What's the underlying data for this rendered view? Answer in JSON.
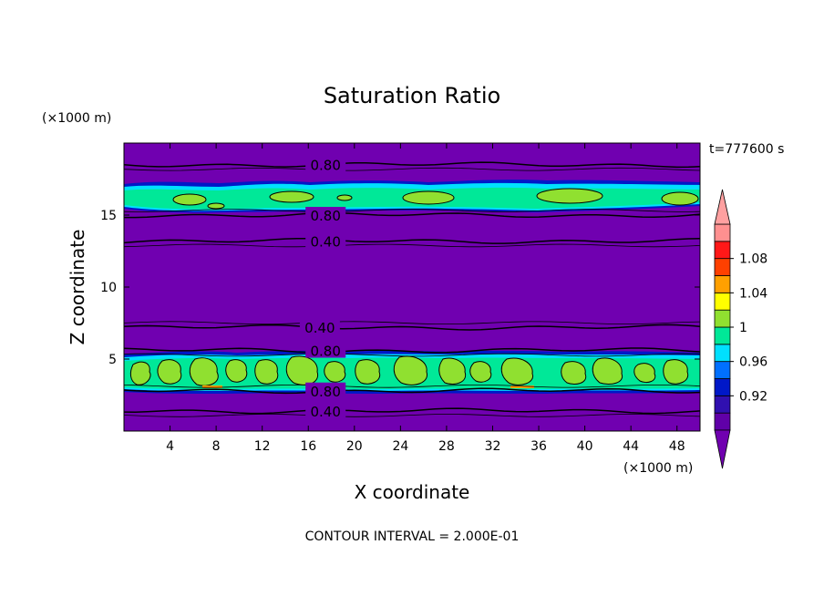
{
  "chart_data": {
    "type": "heatmap",
    "title": "Saturation Ratio",
    "xlabel": "X coordinate",
    "ylabel": "Z coordinate",
    "x_unit": "(×1000 m)",
    "y_unit": "(×1000 m)",
    "time_label": "t=777600 s",
    "footer": "CONTOUR INTERVAL = 2.000E-01",
    "xlim": [
      0,
      50
    ],
    "ylim": [
      0,
      20
    ],
    "xticks": [
      4,
      8,
      12,
      16,
      20,
      24,
      28,
      32,
      36,
      40,
      44,
      48
    ],
    "yticks": [
      5,
      10,
      15
    ],
    "colorbar": {
      "labels": [
        "0.92",
        "0.96",
        "1",
        "1.04",
        "1.08"
      ],
      "levels": [
        0.9,
        0.92,
        0.94,
        0.96,
        0.98,
        1.0,
        1.02,
        1.04,
        1.06,
        1.08,
        1.1
      ],
      "colors": [
        "#6000a8",
        "#3010b0",
        "#0018c8",
        "#0070ff",
        "#00e0ff",
        "#00e898",
        "#90e030",
        "#ffff00",
        "#ffa000",
        "#ff4000",
        "#ff1818",
        "#ff9090"
      ],
      "under_color": "#7000b0",
      "over_color": "#ffa0a0"
    },
    "background_value_color": "#7000b0",
    "contours": [
      {
        "z": 18.5,
        "label": "0.80",
        "label_x": 17.5
      },
      {
        "z": 15.0,
        "label": "0.80",
        "label_x": 17.5
      },
      {
        "z": 13.2,
        "label": "0.40",
        "label_x": 17.5
      },
      {
        "z": 7.2,
        "label": "0.40",
        "label_x": 17.0
      },
      {
        "z": 5.6,
        "label": "0.80",
        "label_x": 17.5
      },
      {
        "z": 2.8,
        "label": "0.80",
        "label_x": 17.5
      },
      {
        "z": 1.4,
        "label": "0.40",
        "label_x": 17.5
      }
    ],
    "moist_layers": [
      {
        "name": "upper",
        "zmin": 15.3,
        "zmax": 17.3
      },
      {
        "name": "lower",
        "zmin": 2.9,
        "zmax": 5.5
      }
    ]
  }
}
